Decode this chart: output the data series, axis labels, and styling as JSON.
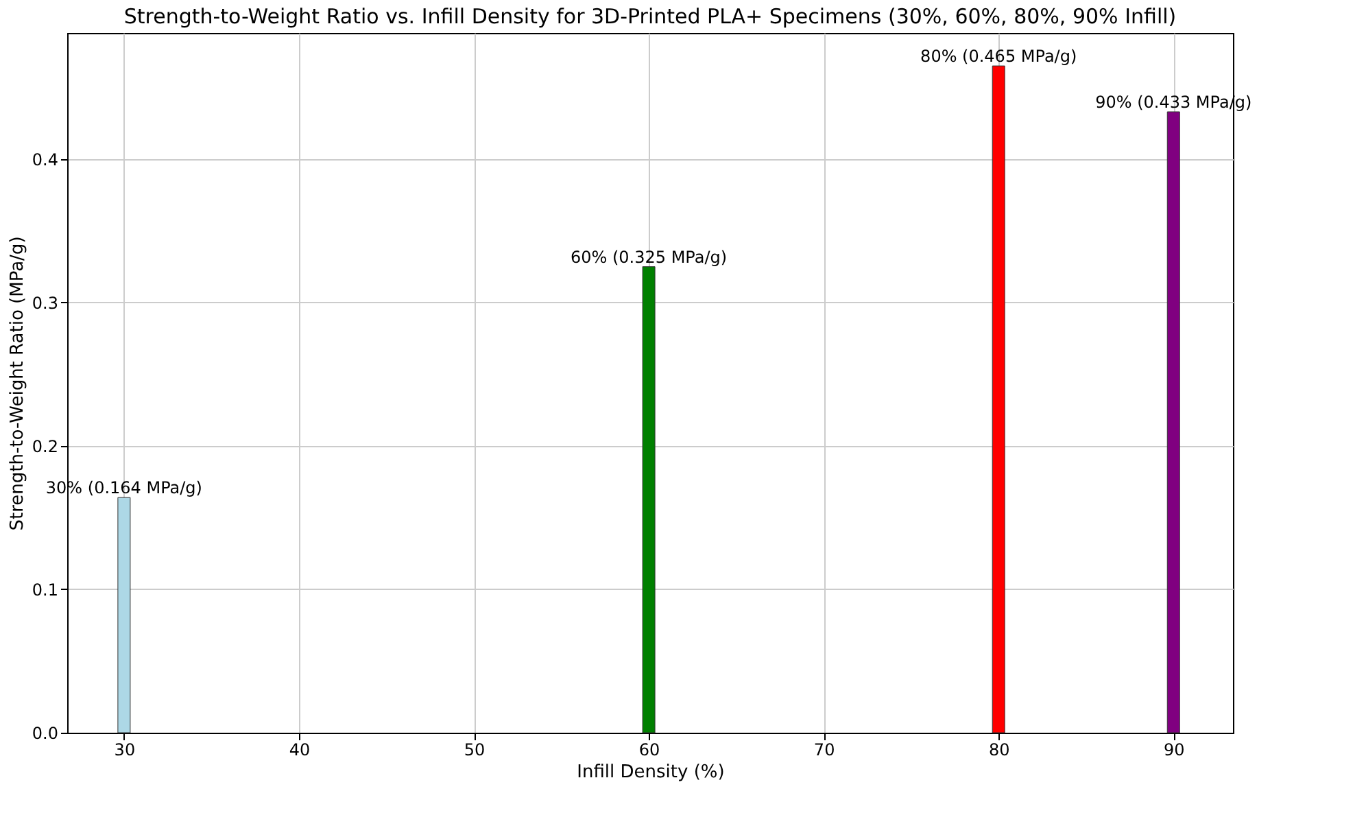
{
  "chart_data": {
    "type": "bar",
    "title": "Strength-to-Weight Ratio vs. Infill Density for 3D-Printed PLA+ Specimens (30%, 60%, 80%, 90% Infill)",
    "xlabel": "Infill Density (%)",
    "ylabel": "Strength-to-Weight Ratio (MPa/g)",
    "x": [
      30,
      60,
      80,
      90
    ],
    "values": [
      0.164,
      0.325,
      0.465,
      0.433
    ],
    "colors": [
      "#add8e6",
      "#008000",
      "#ff0000",
      "#800080"
    ],
    "value_labels": [
      "30% (0.164 MPa/g)",
      "60% (0.325 MPa/g)",
      "80% (0.465 MPa/g)",
      "90% (0.433 MPa/g)"
    ],
    "xlim": [
      26.75,
      93.4
    ],
    "xticks": [
      30,
      40,
      50,
      60,
      70,
      80,
      90
    ],
    "ylim": [
      0,
      0.488
    ],
    "yticks": [
      {
        "value": 0,
        "label": "0.0"
      },
      0.1,
      0.2,
      0.3,
      0.4
    ],
    "grid": true
  }
}
